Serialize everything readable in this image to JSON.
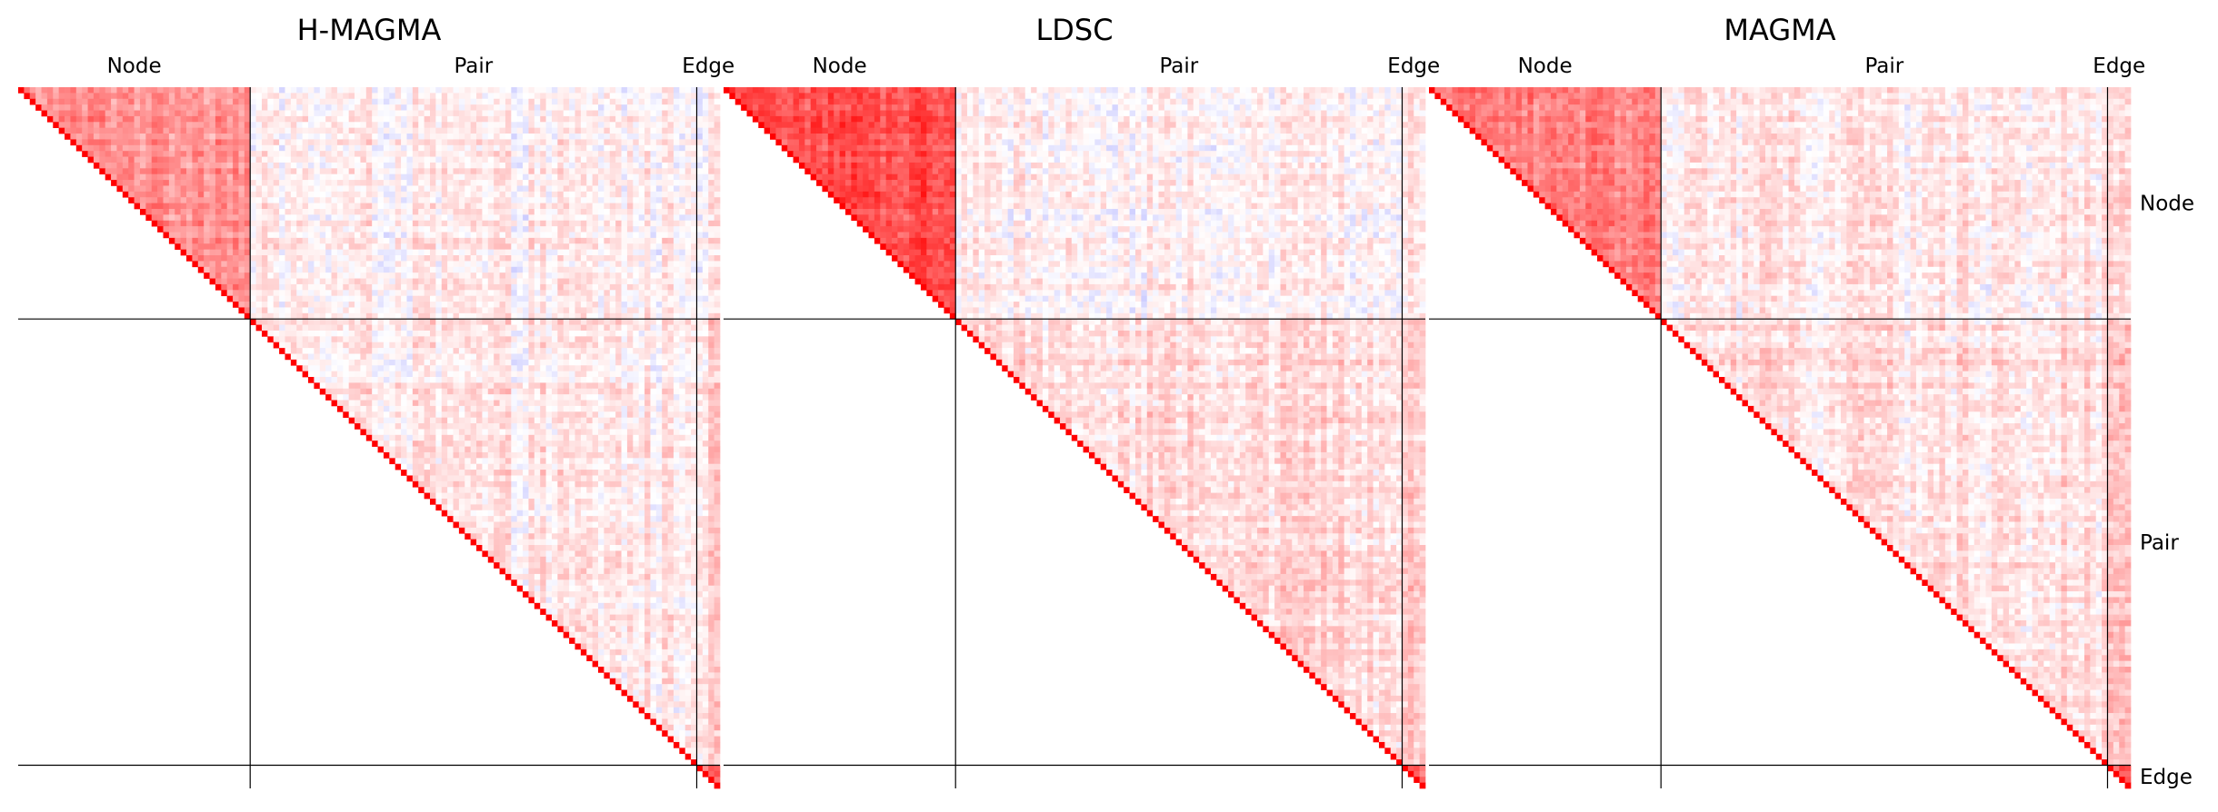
{
  "figure": {
    "colormap": {
      "negative": "#0000ff",
      "zero": "#ffffff",
      "positive": "#ff0000"
    },
    "separator_color": "#000000"
  },
  "chart_data": [
    {
      "type": "heatmap",
      "title": "H-MAGMA",
      "column_groups": [
        "Node",
        "Pair",
        "Edge"
      ],
      "row_groups": [],
      "groups": [
        {
          "name": "Node",
          "size": 40
        },
        {
          "name": "Pair",
          "size": 77
        },
        {
          "name": "Edge",
          "size": 4
        }
      ],
      "matrix_shape": "upper-triangular",
      "diagonal_value": 1.0,
      "block_mean": {
        "node-node": 0.45,
        "node-pair": 0.05,
        "node-edge": 0.05,
        "pair-pair": 0.08,
        "pair-edge": 0.15,
        "edge-edge": 0.6
      },
      "value_range": [
        -1,
        1
      ]
    },
    {
      "type": "heatmap",
      "title": "LDSC",
      "column_groups": [
        "Node",
        "Pair",
        "Edge"
      ],
      "row_groups": [],
      "groups": [
        {
          "name": "Node",
          "size": 40
        },
        {
          "name": "Pair",
          "size": 77
        },
        {
          "name": "Edge",
          "size": 4
        }
      ],
      "matrix_shape": "upper-triangular",
      "diagonal_value": 1.0,
      "block_mean": {
        "node-node": 0.7,
        "node-pair": 0.05,
        "node-edge": 0.1,
        "pair-pair": 0.15,
        "pair-edge": 0.2,
        "edge-edge": 0.6
      },
      "value_range": [
        -1,
        1
      ]
    },
    {
      "type": "heatmap",
      "title": "MAGMA",
      "column_groups": [
        "Node",
        "Pair",
        "Edge"
      ],
      "row_groups": [
        "Node",
        "Pair",
        "Edge"
      ],
      "groups": [
        {
          "name": "Node",
          "size": 40
        },
        {
          "name": "Pair",
          "size": 77
        },
        {
          "name": "Edge",
          "size": 4
        }
      ],
      "matrix_shape": "upper-triangular",
      "diagonal_value": 1.0,
      "block_mean": {
        "node-node": 0.5,
        "node-pair": 0.08,
        "node-edge": 0.1,
        "pair-pair": 0.12,
        "pair-edge": 0.2,
        "edge-edge": 0.6
      },
      "value_range": [
        -1,
        1
      ]
    }
  ]
}
